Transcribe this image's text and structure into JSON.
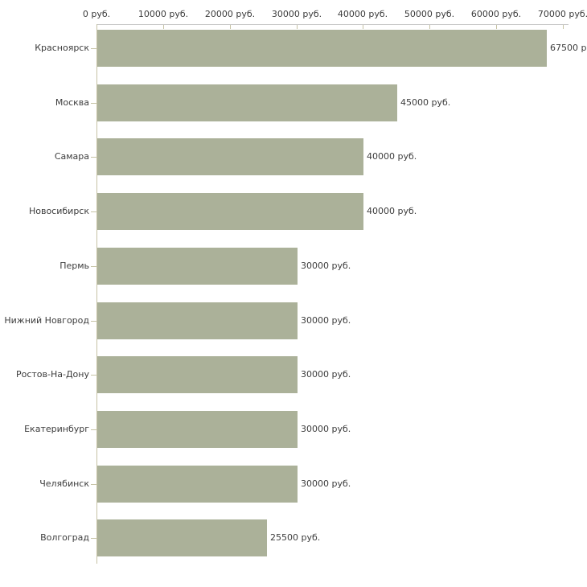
{
  "chart_data": {
    "type": "bar",
    "orientation": "horizontal",
    "title": "",
    "xlabel": "",
    "ylabel": "",
    "categories": [
      "Красноярск",
      "Москва",
      "Самара",
      "Новосибирск",
      "Пермь",
      "Нижний Новгород",
      "Ростов-На-Дону",
      "Екатеринбург",
      "Челябинск",
      "Волгоград"
    ],
    "values": [
      67500,
      45000,
      40000,
      40000,
      30000,
      30000,
      30000,
      30000,
      30000,
      25500
    ],
    "value_labels": [
      "67500 р",
      "45000 руб.",
      "40000 руб.",
      "40000 руб.",
      "30000 руб.",
      "30000 руб.",
      "30000 руб.",
      "30000 руб.",
      "30000 руб.",
      "25500 руб."
    ],
    "x_axis": {
      "position": "top",
      "range": [
        0,
        70000
      ],
      "tick_values": [
        0,
        10000,
        20000,
        30000,
        40000,
        50000,
        60000,
        70000
      ],
      "tick_labels": [
        "0 руб.",
        "10000 руб.",
        "20000 руб.",
        "30000 руб.",
        "40000 руб.",
        "50000 руб.",
        "60000 руб.",
        "70000 руб."
      ]
    },
    "grid": false,
    "legend": "none",
    "colors": {
      "bar_fill": "#abb199",
      "axis_line": "#c9c9c9",
      "tick_line": "#c6c3a5",
      "text": "#3c3c3c",
      "background": "#ffffff"
    }
  }
}
